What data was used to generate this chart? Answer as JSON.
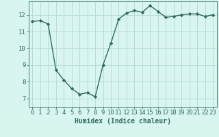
{
  "x": [
    0,
    1,
    2,
    3,
    4,
    5,
    6,
    7,
    8,
    9,
    10,
    11,
    12,
    13,
    14,
    15,
    16,
    17,
    18,
    19,
    20,
    21,
    22,
    23
  ],
  "y": [
    11.6,
    11.65,
    11.45,
    8.7,
    8.1,
    7.6,
    7.25,
    7.35,
    7.1,
    9.0,
    10.3,
    11.75,
    12.1,
    12.25,
    12.15,
    12.55,
    12.2,
    11.85,
    11.9,
    12.0,
    12.05,
    12.05,
    11.9,
    12.0
  ],
  "line_color": "#2e6b5e",
  "marker": "D",
  "markersize": 2.2,
  "linewidth": 1.0,
  "bg_color": "#d8f5f0",
  "grid_color": "#b8ddd8",
  "xlabel": "Humidex (Indice chaleur)",
  "xlabel_fontsize": 7,
  "tick_fontsize": 6.5,
  "ylim": [
    6.5,
    12.8
  ],
  "xlim": [
    -0.5,
    23.5
  ],
  "yticks": [
    7,
    8,
    9,
    10,
    11,
    12
  ],
  "xticks": [
    0,
    1,
    2,
    3,
    4,
    5,
    6,
    7,
    8,
    9,
    10,
    11,
    12,
    13,
    14,
    15,
    16,
    17,
    18,
    19,
    20,
    21,
    22,
    23
  ]
}
